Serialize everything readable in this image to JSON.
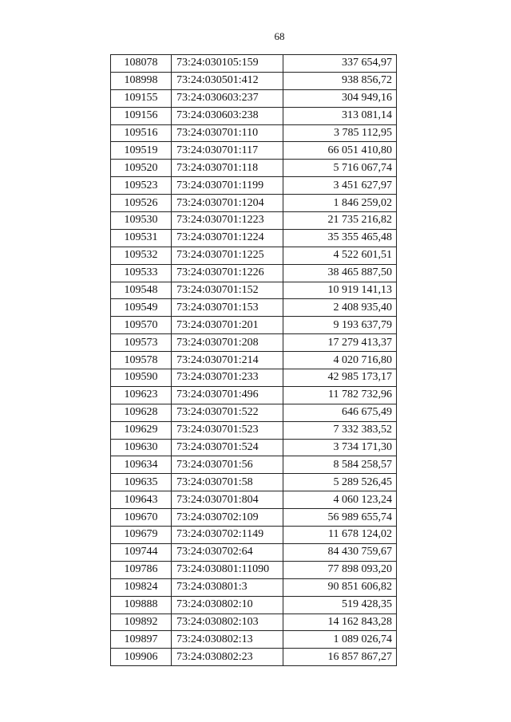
{
  "page_number": "68",
  "table": {
    "rows": [
      [
        "108078",
        "73:24:030105:159",
        "337 654,97"
      ],
      [
        "108998",
        "73:24:030501:412",
        "938 856,72"
      ],
      [
        "109155",
        "73:24:030603:237",
        "304 949,16"
      ],
      [
        "109156",
        "73:24:030603:238",
        "313 081,14"
      ],
      [
        "109516",
        "73:24:030701:110",
        "3 785 112,95"
      ],
      [
        "109519",
        "73:24:030701:117",
        "66 051 410,80"
      ],
      [
        "109520",
        "73:24:030701:118",
        "5 716 067,74"
      ],
      [
        "109523",
        "73:24:030701:1199",
        "3 451 627,97"
      ],
      [
        "109526",
        "73:24:030701:1204",
        "1 846 259,02"
      ],
      [
        "109530",
        "73:24:030701:1223",
        "21 735 216,82"
      ],
      [
        "109531",
        "73:24:030701:1224",
        "35 355 465,48"
      ],
      [
        "109532",
        "73:24:030701:1225",
        "4 522 601,51"
      ],
      [
        "109533",
        "73:24:030701:1226",
        "38 465 887,50"
      ],
      [
        "109548",
        "73:24:030701:152",
        "10 919 141,13"
      ],
      [
        "109549",
        "73:24:030701:153",
        "2 408 935,40"
      ],
      [
        "109570",
        "73:24:030701:201",
        "9 193 637,79"
      ],
      [
        "109573",
        "73:24:030701:208",
        "17 279 413,37"
      ],
      [
        "109578",
        "73:24:030701:214",
        "4 020 716,80"
      ],
      [
        "109590",
        "73:24:030701:233",
        "42 985 173,17"
      ],
      [
        "109623",
        "73:24:030701:496",
        "11 782 732,96"
      ],
      [
        "109628",
        "73:24:030701:522",
        "646 675,49"
      ],
      [
        "109629",
        "73:24:030701:523",
        "7 332 383,52"
      ],
      [
        "109630",
        "73:24:030701:524",
        "3 734 171,30"
      ],
      [
        "109634",
        "73:24:030701:56",
        "8 584 258,57"
      ],
      [
        "109635",
        "73:24:030701:58",
        "5 289 526,45"
      ],
      [
        "109643",
        "73:24:030701:804",
        "4 060 123,24"
      ],
      [
        "109670",
        "73:24:030702:109",
        "56 989 655,74"
      ],
      [
        "109679",
        "73:24:030702:1149",
        "11 678 124,02"
      ],
      [
        "109744",
        "73:24:030702:64",
        "84 430 759,67"
      ],
      [
        "109786",
        "73:24:030801:11090",
        "77 898 093,20"
      ],
      [
        "109824",
        "73:24:030801:3",
        "90 851 606,82"
      ],
      [
        "109888",
        "73:24:030802:10",
        "519 428,35"
      ],
      [
        "109892",
        "73:24:030802:103",
        "14 162 843,28"
      ],
      [
        "109897",
        "73:24:030802:13",
        "1 089 026,74"
      ],
      [
        "109906",
        "73:24:030802:23",
        "16 857 867,27"
      ]
    ]
  }
}
